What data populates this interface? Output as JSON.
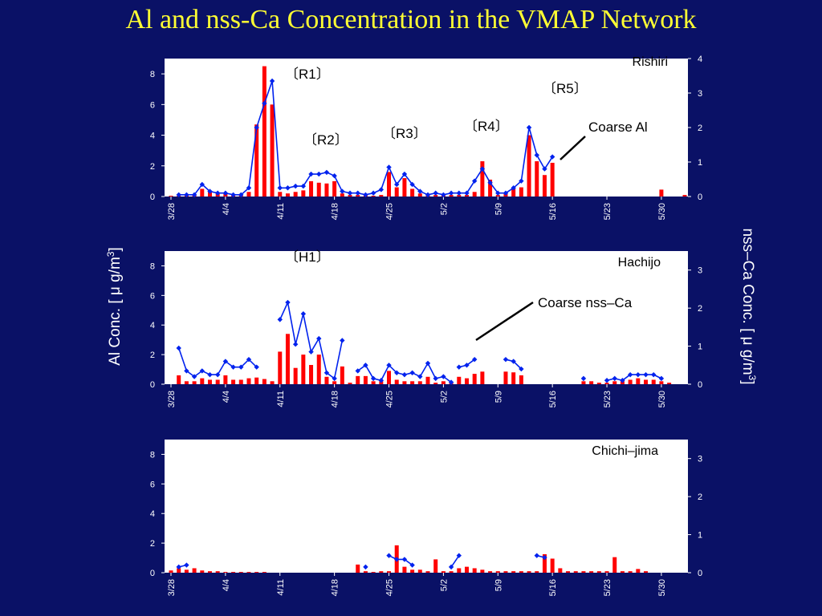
{
  "title": "Al and nss-Ca Concentration in the VMAP Network",
  "left_axis_label": {
    "text": "Al Conc. [ μ g/m",
    "sup": "3",
    "tail": "]"
  },
  "right_axis_label": {
    "text": "nss–Ca Conc. [ μ g/m",
    "sup": "3",
    "tail": "]"
  },
  "colors": {
    "background": "#0a1166",
    "bar": "#ff0000",
    "line": "#0022ee",
    "title": "#ffff33"
  },
  "chart_data": [
    {
      "type": "bar+line",
      "station": "Rishiri",
      "x_tick_labels": [
        "3/28",
        "4/4",
        "4/11",
        "4/18",
        "4/25",
        "5/2",
        "5/9",
        "5/16",
        "5/23",
        "5/30"
      ],
      "x_start_label": "3/28",
      "days": 66,
      "y_left": {
        "ticks": [
          0,
          2,
          4,
          6,
          8
        ],
        "max": 9
      },
      "y_right": {
        "ticks": [
          0,
          1,
          2,
          3,
          4
        ],
        "max": 4
      },
      "annotations": [
        "〔R1〕",
        "〔R2〕",
        "〔R3〕",
        "〔R4〕",
        "〔R5〕",
        "Coarse Al"
      ],
      "bars_al": [
        [
          0,
          0.05
        ],
        [
          1,
          0.05
        ],
        [
          2,
          0.1
        ],
        [
          3,
          0.1
        ],
        [
          4,
          0.5
        ],
        [
          5,
          0.3
        ],
        [
          6,
          0.2
        ],
        [
          7,
          0.2
        ],
        [
          8,
          0.15
        ],
        [
          9,
          0.1
        ],
        [
          10,
          0.3
        ],
        [
          11,
          4.7
        ],
        [
          12,
          8.5
        ],
        [
          13,
          6.0
        ],
        [
          14,
          0.3
        ],
        [
          15,
          0.2
        ],
        [
          16,
          0.3
        ],
        [
          17,
          0.4
        ],
        [
          18,
          1.0
        ],
        [
          19,
          0.9
        ],
        [
          20,
          0.85
        ],
        [
          21,
          1.0
        ],
        [
          22,
          0.2
        ],
        [
          23,
          0.1
        ],
        [
          24,
          0.1
        ],
        [
          25,
          0.1
        ],
        [
          26,
          0.05
        ],
        [
          27,
          0.1
        ],
        [
          28,
          1.6
        ],
        [
          29,
          0.6
        ],
        [
          30,
          1.2
        ],
        [
          31,
          0.5
        ],
        [
          32,
          0.2
        ],
        [
          33,
          0.1
        ],
        [
          34,
          0.1
        ],
        [
          35,
          0.1
        ],
        [
          36,
          0.1
        ],
        [
          37,
          0.1
        ],
        [
          38,
          0.1
        ],
        [
          39,
          0.3
        ],
        [
          40,
          2.3
        ],
        [
          41,
          1.1
        ],
        [
          42,
          0.1
        ],
        [
          43,
          0.2
        ],
        [
          44,
          0.5
        ],
        [
          45,
          0.6
        ],
        [
          46,
          4.0
        ],
        [
          47,
          2.3
        ],
        [
          48,
          1.4
        ],
        [
          49,
          2.2
        ],
        [
          63,
          0.45
        ],
        [
          66,
          0.1
        ]
      ],
      "line_nssca": [
        [
          [
            1,
            0.05
          ],
          [
            2,
            0.05
          ],
          [
            3,
            0.05
          ],
          [
            4,
            0.35
          ],
          [
            5,
            0.15
          ],
          [
            6,
            0.1
          ],
          [
            7,
            0.1
          ],
          [
            8,
            0.05
          ],
          [
            9,
            0.05
          ],
          [
            10,
            0.25
          ],
          [
            11,
            2.0
          ],
          [
            12,
            2.7
          ],
          [
            13,
            3.35
          ],
          [
            14,
            0.25
          ],
          [
            15,
            0.25
          ],
          [
            16,
            0.3
          ],
          [
            17,
            0.3
          ],
          [
            18,
            0.65
          ],
          [
            19,
            0.65
          ],
          [
            20,
            0.7
          ],
          [
            21,
            0.6
          ],
          [
            22,
            0.15
          ],
          [
            23,
            0.1
          ],
          [
            24,
            0.1
          ],
          [
            25,
            0.05
          ],
          [
            26,
            0.1
          ],
          [
            27,
            0.2
          ],
          [
            28,
            0.85
          ],
          [
            29,
            0.35
          ],
          [
            30,
            0.65
          ],
          [
            31,
            0.35
          ],
          [
            32,
            0.15
          ],
          [
            33,
            0.05
          ],
          [
            34,
            0.1
          ],
          [
            35,
            0.05
          ],
          [
            36,
            0.1
          ],
          [
            37,
            0.1
          ],
          [
            38,
            0.1
          ],
          [
            39,
            0.45
          ],
          [
            40,
            0.8
          ],
          [
            41,
            0.4
          ],
          [
            42,
            0.1
          ],
          [
            43,
            0.1
          ],
          [
            44,
            0.25
          ],
          [
            45,
            0.45
          ],
          [
            46,
            2.0
          ],
          [
            47,
            1.2
          ],
          [
            48,
            0.8
          ],
          [
            49,
            1.15
          ]
        ]
      ]
    },
    {
      "type": "bar+line",
      "station": "Hachijo",
      "x_tick_labels": [
        "3/28",
        "4/4",
        "4/11",
        "4/18",
        "4/25",
        "5/2",
        "5/9",
        "5/16",
        "5/23",
        "5/30"
      ],
      "x_start_label": "3/28",
      "days": 66,
      "y_left": {
        "ticks": [
          0,
          2,
          4,
          6,
          8
        ],
        "max": 9
      },
      "y_right": {
        "ticks": [
          0,
          1,
          2,
          3
        ],
        "max": 3.5
      },
      "annotations": [
        "〔H1〕",
        "Coarse nss–Ca"
      ],
      "bars_al": [
        [
          1,
          0.6
        ],
        [
          2,
          0.2
        ],
        [
          3,
          0.2
        ],
        [
          4,
          0.4
        ],
        [
          5,
          0.3
        ],
        [
          6,
          0.3
        ],
        [
          7,
          0.6
        ],
        [
          8,
          0.3
        ],
        [
          9,
          0.3
        ],
        [
          10,
          0.4
        ],
        [
          11,
          0.45
        ],
        [
          12,
          0.35
        ],
        [
          13,
          0.2
        ],
        [
          14,
          2.2
        ],
        [
          15,
          3.4
        ],
        [
          16,
          1.1
        ],
        [
          17,
          2.0
        ],
        [
          18,
          1.3
        ],
        [
          19,
          2.0
        ],
        [
          20,
          0.5
        ],
        [
          21,
          0.2
        ],
        [
          22,
          1.2
        ],
        [
          23,
          0.1
        ],
        [
          24,
          0.55
        ],
        [
          25,
          0.55
        ],
        [
          26,
          0.2
        ],
        [
          27,
          0.2
        ],
        [
          28,
          0.9
        ],
        [
          29,
          0.3
        ],
        [
          30,
          0.2
        ],
        [
          31,
          0.2
        ],
        [
          32,
          0.2
        ],
        [
          33,
          0.5
        ],
        [
          34,
          0.1
        ],
        [
          35,
          0.2
        ],
        [
          36,
          0.1
        ],
        [
          37,
          0.5
        ],
        [
          38,
          0.4
        ],
        [
          39,
          0.7
        ],
        [
          40,
          0.85
        ],
        [
          43,
          0.85
        ],
        [
          44,
          0.8
        ],
        [
          45,
          0.6
        ],
        [
          53,
          0.2
        ],
        [
          54,
          0.2
        ],
        [
          55,
          0.1
        ],
        [
          56,
          0.1
        ],
        [
          57,
          0.2
        ],
        [
          58,
          0.2
        ],
        [
          59,
          0.3
        ],
        [
          60,
          0.4
        ],
        [
          61,
          0.3
        ],
        [
          62,
          0.3
        ],
        [
          63,
          0.2
        ],
        [
          64,
          0.1
        ]
      ],
      "line_nssca": [
        [
          [
            1,
            0.95
          ],
          [
            2,
            0.35
          ],
          [
            3,
            0.2
          ],
          [
            4,
            0.35
          ],
          [
            5,
            0.25
          ],
          [
            6,
            0.25
          ],
          [
            7,
            0.6
          ],
          [
            8,
            0.45
          ],
          [
            9,
            0.45
          ],
          [
            10,
            0.65
          ],
          [
            11,
            0.45
          ]
        ],
        [
          [
            14,
            1.7
          ],
          [
            15,
            2.15
          ],
          [
            16,
            1.05
          ],
          [
            17,
            1.85
          ],
          [
            18,
            0.85
          ],
          [
            19,
            1.2
          ],
          [
            20,
            0.3
          ],
          [
            21,
            0.15
          ],
          [
            22,
            1.15
          ]
        ],
        [
          [
            24,
            0.35
          ],
          [
            25,
            0.5
          ],
          [
            26,
            0.15
          ],
          [
            27,
            0.1
          ],
          [
            28,
            0.5
          ],
          [
            29,
            0.3
          ],
          [
            30,
            0.25
          ],
          [
            31,
            0.3
          ],
          [
            32,
            0.2
          ],
          [
            33,
            0.55
          ],
          [
            34,
            0.15
          ],
          [
            35,
            0.2
          ],
          [
            36,
            0.05
          ]
        ],
        [
          [
            37,
            0.45
          ],
          [
            38,
            0.5
          ],
          [
            39,
            0.65
          ]
        ],
        [
          [
            43,
            0.65
          ],
          [
            44,
            0.6
          ],
          [
            45,
            0.4
          ]
        ],
        [
          [
            53,
            0.15
          ]
        ],
        [
          [
            56,
            0.1
          ],
          [
            57,
            0.15
          ],
          [
            58,
            0.1
          ],
          [
            59,
            0.25
          ],
          [
            60,
            0.25
          ],
          [
            61,
            0.25
          ],
          [
            62,
            0.25
          ],
          [
            63,
            0.15
          ]
        ]
      ]
    },
    {
      "type": "bar+line",
      "station": "Chichi–jima",
      "x_tick_labels": [
        "3/28",
        "4/4",
        "4/11",
        "4/18",
        "4/25",
        "5/2",
        "5/9",
        "5/16",
        "5/23",
        "5/30"
      ],
      "x_start_label": "3/28",
      "days": 66,
      "y_left": {
        "ticks": [
          0,
          2,
          4,
          6,
          8
        ],
        "max": 9
      },
      "y_right": {
        "ticks": [
          0,
          1,
          2,
          3
        ],
        "max": 3.5
      },
      "annotations": [],
      "bars_al": [
        [
          0,
          0.15
        ],
        [
          1,
          0.3
        ],
        [
          2,
          0.2
        ],
        [
          3,
          0.3
        ],
        [
          4,
          0.15
        ],
        [
          5,
          0.1
        ],
        [
          6,
          0.1
        ],
        [
          7,
          0.05
        ],
        [
          8,
          0.05
        ],
        [
          9,
          0.05
        ],
        [
          10,
          0.05
        ],
        [
          11,
          0.05
        ],
        [
          12,
          0.05
        ],
        [
          24,
          0.55
        ],
        [
          25,
          0.1
        ],
        [
          26,
          0.05
        ],
        [
          27,
          0.1
        ],
        [
          28,
          0.1
        ],
        [
          29,
          1.85
        ],
        [
          30,
          0.4
        ],
        [
          31,
          0.2
        ],
        [
          32,
          0.2
        ],
        [
          33,
          0.1
        ],
        [
          34,
          0.9
        ],
        [
          35,
          0.1
        ],
        [
          36,
          0.1
        ],
        [
          37,
          0.3
        ],
        [
          38,
          0.4
        ],
        [
          39,
          0.3
        ],
        [
          40,
          0.2
        ],
        [
          41,
          0.1
        ],
        [
          42,
          0.1
        ],
        [
          43,
          0.1
        ],
        [
          44,
          0.1
        ],
        [
          45,
          0.1
        ],
        [
          46,
          0.1
        ],
        [
          47,
          0.1
        ],
        [
          48,
          1.25
        ],
        [
          49,
          0.95
        ],
        [
          50,
          0.3
        ],
        [
          51,
          0.1
        ],
        [
          52,
          0.1
        ],
        [
          53,
          0.1
        ],
        [
          54,
          0.1
        ],
        [
          55,
          0.1
        ],
        [
          56,
          0.1
        ],
        [
          57,
          1.05
        ],
        [
          58,
          0.1
        ],
        [
          59,
          0.1
        ],
        [
          60,
          0.25
        ],
        [
          61,
          0.1
        ]
      ],
      "line_nssca": [
        [
          [
            1,
            0.15
          ],
          [
            2,
            0.2
          ]
        ],
        [
          [
            25,
            0.15
          ]
        ],
        [
          [
            28,
            0.45
          ],
          [
            29,
            0.35
          ],
          [
            30,
            0.35
          ],
          [
            31,
            0.2
          ]
        ],
        [
          [
            36,
            0.15
          ],
          [
            37,
            0.45
          ]
        ],
        [
          [
            47,
            0.45
          ],
          [
            48,
            0.4
          ]
        ]
      ]
    }
  ]
}
